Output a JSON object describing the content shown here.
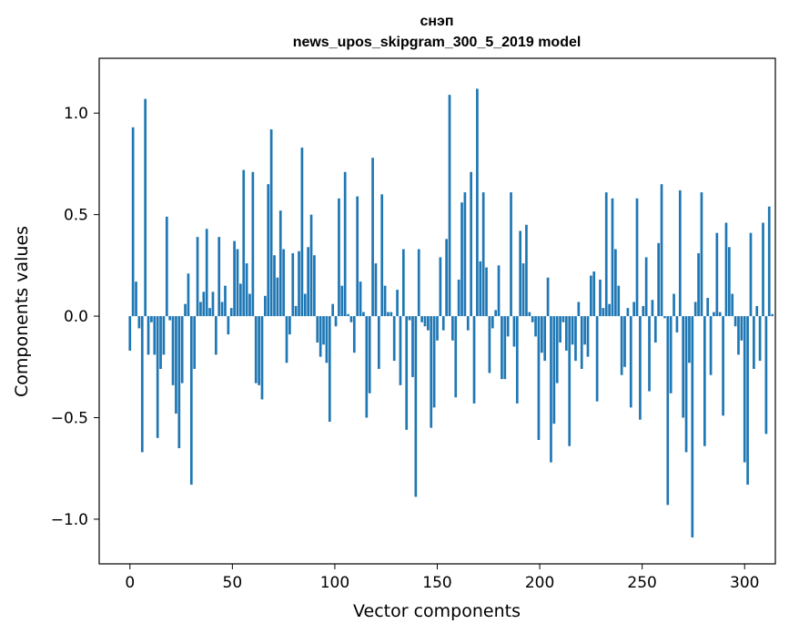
{
  "chart_data": {
    "type": "bar",
    "title": "снэп",
    "subtitle": "news_upos_skipgram_300_5_2019 model",
    "xlabel": "Vector components",
    "ylabel": "Components values",
    "xlim": [
      -15,
      315
    ],
    "ylim": [
      -1.22,
      1.27
    ],
    "xticks": [
      0,
      50,
      100,
      150,
      200,
      250,
      300
    ],
    "xtick_labels": [
      "0",
      "50",
      "100",
      "150",
      "200",
      "250",
      "300"
    ],
    "yticks": [
      1.0,
      0.5,
      0.0,
      -0.5,
      -1.0
    ],
    "ytick_labels": [
      "1.0",
      "0.5",
      "0.0",
      "−0.5",
      "−1.0"
    ],
    "grid": false,
    "bar_color": "#1f77b4",
    "values": [
      -0.17,
      0.93,
      0.17,
      -0.06,
      -0.67,
      1.07,
      -0.19,
      -0.03,
      -0.19,
      -0.6,
      -0.26,
      -0.19,
      0.49,
      -0.02,
      -0.34,
      -0.48,
      -0.65,
      -0.33,
      0.06,
      0.21,
      -0.83,
      -0.26,
      0.39,
      0.07,
      0.12,
      0.43,
      0.04,
      0.12,
      -0.19,
      0.39,
      0.07,
      0.15,
      -0.09,
      0.04,
      0.37,
      0.33,
      0.16,
      0.72,
      0.26,
      0.11,
      0.71,
      -0.33,
      -0.34,
      -0.41,
      0.1,
      0.65,
      0.92,
      0.3,
      0.19,
      0.52,
      0.33,
      -0.23,
      -0.09,
      0.31,
      0.05,
      0.32,
      0.83,
      0.11,
      0.34,
      0.5,
      0.3,
      -0.13,
      -0.2,
      -0.14,
      -0.23,
      -0.52,
      0.06,
      -0.05,
      0.58,
      0.15,
      0.71,
      0.01,
      -0.03,
      -0.18,
      0.59,
      0.17,
      0.02,
      -0.5,
      -0.38,
      0.78,
      0.26,
      -0.26,
      0.6,
      0.15,
      0.02,
      0.02,
      -0.22,
      0.13,
      -0.34,
      0.33,
      -0.56,
      -0.02,
      -0.3,
      -0.89,
      0.33,
      -0.03,
      -0.05,
      -0.07,
      -0.55,
      -0.45,
      -0.12,
      0.29,
      -0.07,
      0.38,
      1.09,
      -0.12,
      -0.4,
      0.18,
      0.56,
      0.61,
      -0.07,
      0.71,
      -0.43,
      1.12,
      0.27,
      0.61,
      0.24,
      -0.28,
      -0.06,
      0.03,
      0.25,
      -0.31,
      -0.31,
      -0.1,
      0.61,
      -0.15,
      -0.43,
      0.42,
      0.26,
      0.45,
      0.02,
      -0.03,
      -0.1,
      -0.61,
      -0.18,
      -0.22,
      0.19,
      -0.72,
      -0.53,
      -0.33,
      -0.13,
      -0.03,
      -0.17,
      -0.64,
      -0.14,
      -0.22,
      0.07,
      -0.26,
      -0.14,
      -0.2,
      0.2,
      0.22,
      -0.42,
      0.18,
      0.04,
      0.61,
      0.06,
      0.58,
      0.33,
      0.15,
      -0.29,
      -0.25,
      0.04,
      -0.45,
      0.07,
      0.58,
      -0.51,
      0.05,
      0.29,
      -0.37,
      0.08,
      -0.13,
      0.36,
      0.65,
      -0.01,
      -0.93,
      -0.38,
      0.11,
      -0.08,
      0.62,
      -0.5,
      -0.67,
      -0.23,
      -1.09,
      0.07,
      0.31,
      0.61,
      -0.64,
      0.09,
      -0.29,
      0.02,
      0.41,
      0.02,
      -0.49,
      0.46,
      0.34,
      0.11,
      -0.05,
      -0.19,
      -0.12,
      -0.72,
      -0.83,
      0.41,
      -0.26,
      0.05,
      -0.22,
      0.46,
      -0.58,
      0.54,
      0.01
    ]
  }
}
